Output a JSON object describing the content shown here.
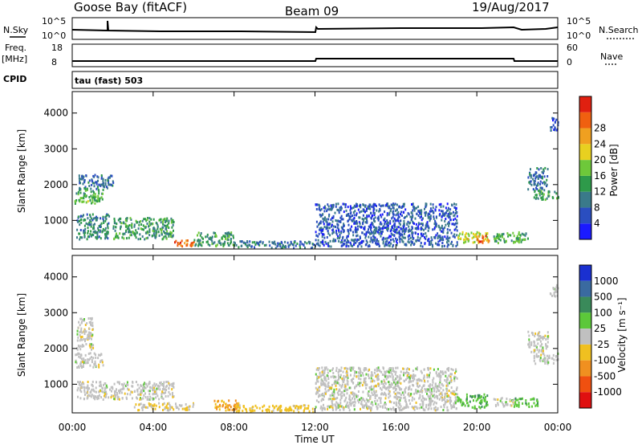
{
  "header": {
    "station": "Goose Bay (fitACF)",
    "beam": "Beam 09",
    "date": "19/Aug/2017"
  },
  "panels": {
    "nsky": {
      "left_label": "N.Sky",
      "right_label": "N.Search",
      "y_ticks_left": [
        "10^5",
        "10^0"
      ],
      "y_ticks_right": [
        "10^5",
        "10^0"
      ]
    },
    "freq": {
      "left_label_top": "Freq.",
      "left_label_bottom": "[MHz]",
      "cpid_label": "CPID",
      "right_label": "Nave",
      "y_ticks_left": [
        "18",
        "8"
      ],
      "y_ticks_right": [
        "60",
        "0"
      ]
    },
    "cpid_text": "tau (fast) 503"
  },
  "colors": {
    "power": [
      "#1a1aff",
      "#2a4ec0",
      "#3a7a8a",
      "#2e9a4a",
      "#6ec83a",
      "#e8d020",
      "#f0a020",
      "#f06010",
      "#e02010"
    ],
    "velocity": [
      "#1a30d0",
      "#3a6aa0",
      "#3a8a5a",
      "#5cc83a",
      "#c0c0c0",
      "#f0c020",
      "#f09020",
      "#f05010",
      "#e01010"
    ]
  },
  "power_colorbar": {
    "label": "Power [dB]",
    "ticks": [
      "4",
      "8",
      "12",
      "16",
      "20",
      "24",
      "28"
    ]
  },
  "velocity_colorbar": {
    "label": "Velocity [m s⁻¹]",
    "ticks": [
      "1000",
      "500",
      "100",
      "25",
      "-25",
      "-100",
      "-500",
      "-1000"
    ]
  },
  "chart_data": [
    {
      "type": "heatmap",
      "name_shown": "Power",
      "xlabel": "Time UT",
      "ylabel": "Slant Range [km]",
      "x_ticks": [
        "00:00",
        "04:00",
        "08:00",
        "12:00",
        "16:00",
        "20:00",
        "00:00"
      ],
      "y_ticks": [
        "1000",
        "2000",
        "3000",
        "4000"
      ],
      "x_range_hours": [
        0,
        24
      ],
      "y_range_km": [
        200,
        4600
      ],
      "regions": [
        {
          "t0": 0.2,
          "t1": 1.8,
          "r0": 500,
          "r1": 1200,
          "value_db": 10
        },
        {
          "t0": 0.1,
          "t1": 1.5,
          "r0": 1500,
          "r1": 1900,
          "value_db": 14
        },
        {
          "t0": 0.3,
          "t1": 2.0,
          "r0": 1900,
          "r1": 2300,
          "value_db": 8
        },
        {
          "t0": 2.0,
          "t1": 5.0,
          "r0": 500,
          "r1": 1100,
          "value_db": 12
        },
        {
          "t0": 5.0,
          "t1": 6.0,
          "r0": 300,
          "r1": 500,
          "value_db": 26
        },
        {
          "t0": 6.0,
          "t1": 8.0,
          "r0": 300,
          "r1": 700,
          "value_db": 12
        },
        {
          "t0": 8.0,
          "t1": 12.0,
          "r0": 250,
          "r1": 450,
          "value_db": 8
        },
        {
          "t0": 12.0,
          "t1": 19.0,
          "r0": 300,
          "r1": 1500,
          "value_db": 6
        },
        {
          "t0": 19.0,
          "t1": 20.5,
          "r0": 400,
          "r1": 700,
          "value_db": 18
        },
        {
          "t0": 20.0,
          "t1": 20.6,
          "r0": 400,
          "r1": 600,
          "value_db": 26
        },
        {
          "t0": 20.8,
          "t1": 22.5,
          "r0": 400,
          "r1": 700,
          "value_db": 14
        },
        {
          "t0": 22.8,
          "t1": 24.0,
          "r0": 1600,
          "r1": 1900,
          "value_db": 12
        },
        {
          "t0": 22.5,
          "t1": 23.5,
          "r0": 1900,
          "r1": 2500,
          "value_db": 8
        },
        {
          "t0": 23.6,
          "t1": 24.0,
          "r0": 3500,
          "r1": 3900,
          "value_db": 6
        }
      ]
    },
    {
      "type": "heatmap",
      "name_shown": "Velocity",
      "xlabel": "Time UT",
      "ylabel": "Slant Range [km]",
      "x_ticks": [
        "00:00",
        "04:00",
        "08:00",
        "12:00",
        "16:00",
        "20:00",
        "00:00"
      ],
      "y_ticks": [
        "1000",
        "2000",
        "3000",
        "4000"
      ],
      "x_range_hours": [
        0,
        24
      ],
      "y_range_km": [
        200,
        4600
      ],
      "regions": [
        {
          "t0": 0.2,
          "t1": 2.0,
          "r0": 600,
          "r1": 1100,
          "value_ms": 0
        },
        {
          "t0": 0.1,
          "t1": 1.5,
          "r0": 1500,
          "r1": 1900,
          "value_ms": 0
        },
        {
          "t0": 0.2,
          "t1": 1.0,
          "r0": 2000,
          "r1": 2900,
          "value_ms": 0
        },
        {
          "t0": 2.0,
          "t1": 5.0,
          "r0": 600,
          "r1": 1100,
          "value_ms": 0
        },
        {
          "t0": 3.0,
          "t1": 6.0,
          "r0": 300,
          "r1": 500,
          "value_ms": -25
        },
        {
          "t0": 7.0,
          "t1": 8.2,
          "r0": 300,
          "r1": 600,
          "value_ms": -100
        },
        {
          "t0": 8.0,
          "t1": 12.0,
          "r0": 250,
          "r1": 450,
          "value_ms": -50
        },
        {
          "t0": 12.0,
          "t1": 19.0,
          "r0": 300,
          "r1": 1500,
          "value_ms": 0
        },
        {
          "t0": 19.0,
          "t1": 20.5,
          "r0": 350,
          "r1": 750,
          "value_ms": 80
        },
        {
          "t0": 20.8,
          "t1": 21.8,
          "r0": 400,
          "r1": 650,
          "value_ms": 0
        },
        {
          "t0": 21.8,
          "t1": 23.0,
          "r0": 400,
          "r1": 650,
          "value_ms": 80
        },
        {
          "t0": 22.8,
          "t1": 24.0,
          "r0": 1600,
          "r1": 1900,
          "value_ms": 0
        },
        {
          "t0": 22.5,
          "t1": 23.5,
          "r0": 1900,
          "r1": 2500,
          "value_ms": 0
        },
        {
          "t0": 23.6,
          "t1": 24.0,
          "r0": 3400,
          "r1": 3800,
          "value_ms": 0
        }
      ]
    }
  ]
}
